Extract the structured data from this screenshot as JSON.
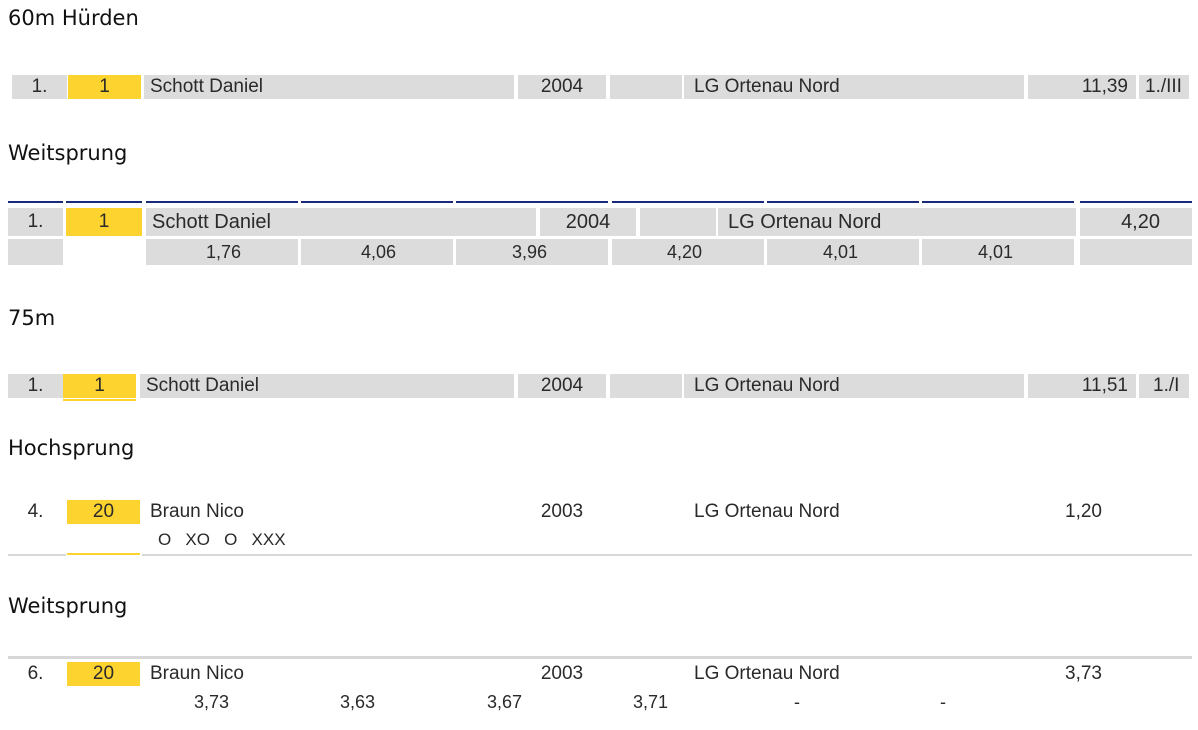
{
  "sections": [
    {
      "title": "60m Hürden",
      "rank": "1.",
      "bib": "1",
      "name": "Schott Daniel",
      "year": "2004",
      "club": "LG Ortenau Nord",
      "result": "11,39",
      "place": "1./III"
    },
    {
      "title": "Weitsprung",
      "rank": "1.",
      "bib": "1",
      "name": "Schott Daniel",
      "year": "2004",
      "club": "LG Ortenau Nord",
      "result": "4,20",
      "attempts": [
        "1,76",
        "4,06",
        "3,96",
        "4,20",
        "4,01",
        "4,01"
      ]
    },
    {
      "title": "75m",
      "rank": "1.",
      "bib": "1",
      "name": "Schott Daniel",
      "year": "2004",
      "club": "LG Ortenau Nord",
      "result": "11,51",
      "place": "1./I"
    },
    {
      "title": "Hochsprung",
      "rank": "4.",
      "bib": "20",
      "name": "Braun Nico",
      "year": "2003",
      "club": "LG Ortenau Nord",
      "result": "1,20",
      "attempts_text": "O   XO   O   XXX"
    },
    {
      "title": "Weitsprung",
      "rank": "6.",
      "bib": "20",
      "name": "Braun Nico",
      "year": "2003",
      "club": "LG Ortenau Nord",
      "result": "3,73",
      "attempts": [
        "3,73",
        "3,63",
        "3,67",
        "3,71",
        "-",
        "-"
      ]
    }
  ]
}
